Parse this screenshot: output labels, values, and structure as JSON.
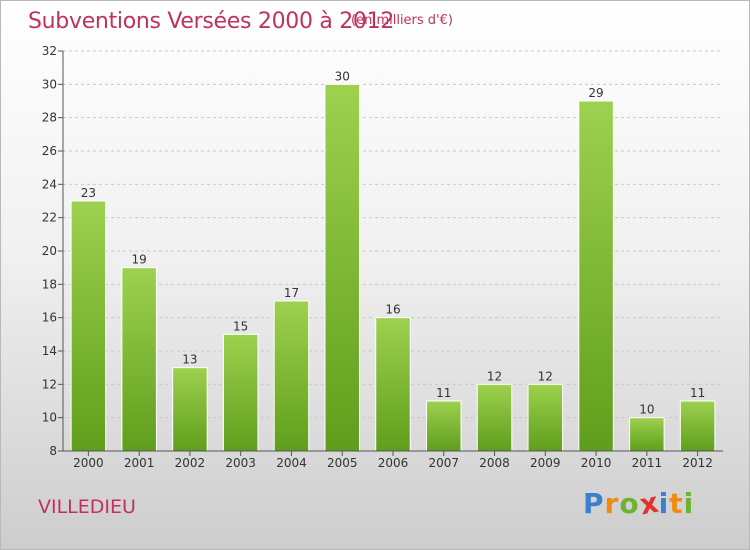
{
  "title": "Subventions Versées 2000 à 2012",
  "subtitle": "(en milliers d'€)",
  "commune": "VILLEDIEU",
  "logo": {
    "text": "Proxiti",
    "letters": [
      {
        "ch": "P",
        "color": "#3a7fd0"
      },
      {
        "ch": "r",
        "color": "#f08a12"
      },
      {
        "ch": "o",
        "color": "#6cb42d"
      },
      {
        "ch": "x",
        "color": "#e2322d"
      },
      {
        "ch": "i",
        "color": "#3a7fd0"
      },
      {
        "ch": "t",
        "color": "#f08a12"
      },
      {
        "ch": "i",
        "color": "#6cb42d"
      }
    ]
  },
  "colors": {
    "title": "#c0325e",
    "bar_top": "#9dd14f",
    "bar_bottom": "#5f9e1c",
    "grid": "#c8c8c8"
  },
  "chart_data": {
    "type": "bar",
    "title": "Subventions Versées 2000 à 2012",
    "subtitle": "(en milliers d'€)",
    "categories": [
      "2000",
      "2001",
      "2002",
      "2003",
      "2004",
      "2005",
      "2006",
      "2007",
      "2008",
      "2009",
      "2010",
      "2011",
      "2012"
    ],
    "values": [
      23,
      19,
      13,
      15,
      17,
      30,
      16,
      11,
      12,
      12,
      29,
      10,
      11
    ],
    "ylim": [
      8,
      32
    ],
    "yticks": [
      8,
      10,
      12,
      14,
      16,
      18,
      20,
      22,
      24,
      26,
      28,
      30,
      32
    ],
    "grid": true,
    "legend": "none"
  }
}
